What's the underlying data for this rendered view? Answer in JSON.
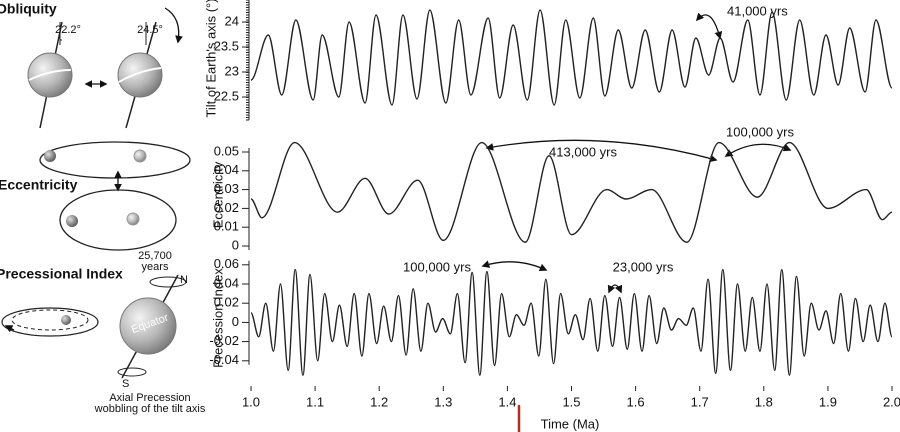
{
  "chart_data": [
    {
      "type": "line",
      "ylabel": "Tilt of Earth's axis (°)",
      "color": "#222222",
      "xlim": [
        1,
        2
      ],
      "ylim": [
        22.3,
        24.4
      ],
      "yticks": [
        22.5,
        23,
        23.5,
        24
      ],
      "annotations": [
        "41,000 yrs"
      ],
      "x": [
        1.0,
        1.027,
        1.048,
        1.07,
        1.097,
        1.111,
        1.137,
        1.153,
        1.178,
        1.195,
        1.22,
        1.237,
        1.259,
        1.279,
        1.304,
        1.324,
        1.343,
        1.37,
        1.388,
        1.409,
        1.431,
        1.451,
        1.473,
        1.491,
        1.513,
        1.534,
        1.552,
        1.573,
        1.594,
        1.615,
        1.637,
        1.657,
        1.677,
        1.694,
        1.714,
        1.732,
        1.752,
        1.775,
        1.794,
        1.813,
        1.835,
        1.856,
        1.878,
        1.897,
        1.916,
        1.934,
        1.958,
        1.975,
        2.0
      ],
      "values": [
        22.84,
        23.74,
        22.54,
        24.04,
        22.44,
        23.74,
        22.5,
        24.0,
        22.38,
        24.14,
        22.34,
        24.14,
        22.46,
        24.24,
        22.38,
        24.04,
        22.54,
        24.08,
        22.48,
        23.94,
        22.44,
        24.24,
        22.34,
        24.04,
        22.48,
        24.08,
        22.52,
        23.84,
        22.68,
        23.84,
        22.6,
        23.84,
        22.7,
        23.68,
        22.94,
        23.68,
        22.8,
        24.04,
        22.54,
        24.2,
        22.44,
        24.04,
        22.54,
        23.74,
        22.74,
        23.88,
        22.6,
        24.04,
        22.68
      ]
    },
    {
      "type": "line",
      "ylabel": "Eccentricity",
      "color": "#222222",
      "xlim": [
        1,
        2
      ],
      "ylim": [
        0,
        0.055
      ],
      "yticks": [
        0,
        0.01,
        0.02,
        0.03,
        0.04,
        0.05
      ],
      "annotations": [
        "100,000 yrs",
        "413,000 yrs"
      ],
      "x": [
        1.0,
        1.017,
        1.068,
        1.135,
        1.178,
        1.215,
        1.26,
        1.3,
        1.36,
        1.428,
        1.465,
        1.5,
        1.555,
        1.585,
        1.625,
        1.68,
        1.73,
        1.79,
        1.84,
        1.9,
        1.96,
        1.985,
        2.0
      ],
      "values": [
        0.025,
        0.015,
        0.055,
        0.018,
        0.036,
        0.017,
        0.035,
        0.003,
        0.055,
        0.002,
        0.048,
        0.006,
        0.03,
        0.025,
        0.03,
        0.002,
        0.055,
        0.026,
        0.055,
        0.02,
        0.03,
        0.014,
        0.018
      ]
    },
    {
      "type": "line",
      "ylabel": "Precession Index",
      "xlabel": "Time (Ma)",
      "color": "#222222",
      "xlim": [
        1,
        2
      ],
      "ylim": [
        -0.06,
        0.065
      ],
      "yticks": [
        -0.04,
        -0.02,
        0,
        0.02,
        0.04,
        0.06
      ],
      "xticks": [
        {
          "value": 1,
          "label": "1.0"
        },
        1.1,
        1.2,
        1.3,
        1.4,
        1.5,
        1.6,
        1.7,
        1.8,
        1.9,
        {
          "value": 2,
          "label": "2.0"
        }
      ],
      "annotations": [
        "100,000 yrs",
        "23,000 yrs"
      ],
      "x": [
        1.0,
        1.012,
        1.023,
        1.035,
        1.046,
        1.058,
        1.069,
        1.081,
        1.092,
        1.104,
        1.115,
        1.127,
        1.138,
        1.15,
        1.161,
        1.173,
        1.184,
        1.196,
        1.207,
        1.219,
        1.23,
        1.242,
        1.253,
        1.265,
        1.276,
        1.288,
        1.299,
        1.311,
        1.322,
        1.334,
        1.345,
        1.357,
        1.368,
        1.38,
        1.391,
        1.403,
        1.414,
        1.426,
        1.437,
        1.449,
        1.46,
        1.472,
        1.483,
        1.495,
        1.506,
        1.518,
        1.529,
        1.541,
        1.552,
        1.564,
        1.575,
        1.587,
        1.598,
        1.61,
        1.621,
        1.633,
        1.644,
        1.656,
        1.667,
        1.679,
        1.69,
        1.702,
        1.713,
        1.725,
        1.736,
        1.748,
        1.759,
        1.771,
        1.782,
        1.794,
        1.805,
        1.817,
        1.828,
        1.84,
        1.851,
        1.863,
        1.874,
        1.886,
        1.897,
        1.909,
        1.92,
        1.932,
        1.943,
        1.955,
        1.966,
        1.978,
        1.989,
        2.0
      ],
      "values": [
        0.01,
        -0.015,
        0.02,
        -0.03,
        0.04,
        -0.05,
        0.055,
        -0.055,
        0.05,
        -0.04,
        0.03,
        -0.02,
        0.018,
        -0.025,
        0.03,
        -0.035,
        0.03,
        -0.022,
        0.017,
        -0.02,
        0.028,
        -0.034,
        0.035,
        -0.03,
        0.02,
        -0.01,
        0.004,
        -0.012,
        0.03,
        -0.042,
        0.052,
        -0.055,
        0.053,
        -0.045,
        0.03,
        -0.015,
        0.008,
        -0.003,
        0.02,
        -0.035,
        0.045,
        -0.043,
        0.03,
        -0.012,
        0.008,
        -0.018,
        0.025,
        -0.03,
        0.028,
        -0.025,
        0.026,
        -0.028,
        0.03,
        -0.03,
        0.028,
        -0.022,
        0.015,
        -0.008,
        0.004,
        -0.003,
        0.015,
        -0.03,
        0.045,
        -0.053,
        0.055,
        -0.05,
        0.04,
        -0.03,
        0.026,
        -0.03,
        0.04,
        -0.05,
        0.055,
        -0.055,
        0.048,
        -0.035,
        0.02,
        -0.008,
        0.012,
        -0.022,
        0.03,
        -0.03,
        0.025,
        -0.02,
        0.018,
        -0.02,
        0.02,
        -0.015
      ]
    }
  ],
  "diagram": {
    "obliquity": {
      "title": "Obliquity",
      "angle_low": "22.2°",
      "angle_high": "24.5°"
    },
    "eccentricity": {
      "title": "Eccentricity"
    },
    "precession": {
      "title": "Precessional Index",
      "period": [
        "25,700",
        "years"
      ],
      "north": "N",
      "south": "S",
      "equator": "Equator",
      "caption": [
        "Axial Precession",
        "wobbling of the tilt axis"
      ]
    }
  }
}
